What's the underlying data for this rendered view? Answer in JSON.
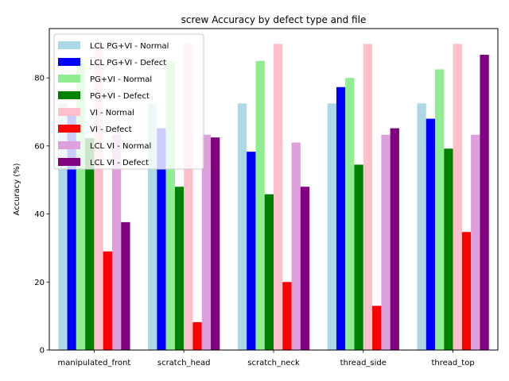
{
  "chart_data": {
    "type": "bar",
    "title": "screw Accuracy by defect type and file",
    "xlabel": "",
    "ylabel": "Accuracy (%)",
    "ylim": [
      0,
      94.5
    ],
    "yticks": [
      0,
      20,
      40,
      60,
      80
    ],
    "grid": false,
    "legend_position": "top-left",
    "categories": [
      "manipulated_front",
      "scratch_head",
      "scratch_neck",
      "thread_side",
      "thread_top"
    ],
    "series": [
      {
        "name": "LCL PG+VI - Normal",
        "color": "#add8e6",
        "values": [
          72.5,
          72.5,
          72.5,
          72.5,
          72.5
        ]
      },
      {
        "name": "LCL PG+VI - Defect",
        "color": "#0000ff",
        "values": [
          69.5,
          65.2,
          58.3,
          77.3,
          68.0
        ]
      },
      {
        "name": "PG+VI - Normal",
        "color": "#90ee90",
        "values": [
          85.0,
          85.0,
          85.0,
          80.0,
          82.5
        ]
      },
      {
        "name": "PG+VI - Defect",
        "color": "#008000",
        "values": [
          62.3,
          48.0,
          45.8,
          54.5,
          59.2
        ]
      },
      {
        "name": "VI - Normal",
        "color": "#ffc0cb",
        "values": [
          90.0,
          90.0,
          90.0,
          90.0,
          90.0
        ]
      },
      {
        "name": "VI - Defect",
        "color": "#ff0000",
        "values": [
          29.0,
          8.2,
          20.0,
          13.0,
          34.7
        ]
      },
      {
        "name": "LCL VI - Normal",
        "color": "#dda0dd",
        "values": [
          63.3,
          63.3,
          61.0,
          63.3,
          63.3
        ]
      },
      {
        "name": "LCL VI - Defect",
        "color": "#800080",
        "values": [
          37.6,
          62.5,
          48.0,
          65.2,
          86.8
        ]
      }
    ]
  }
}
